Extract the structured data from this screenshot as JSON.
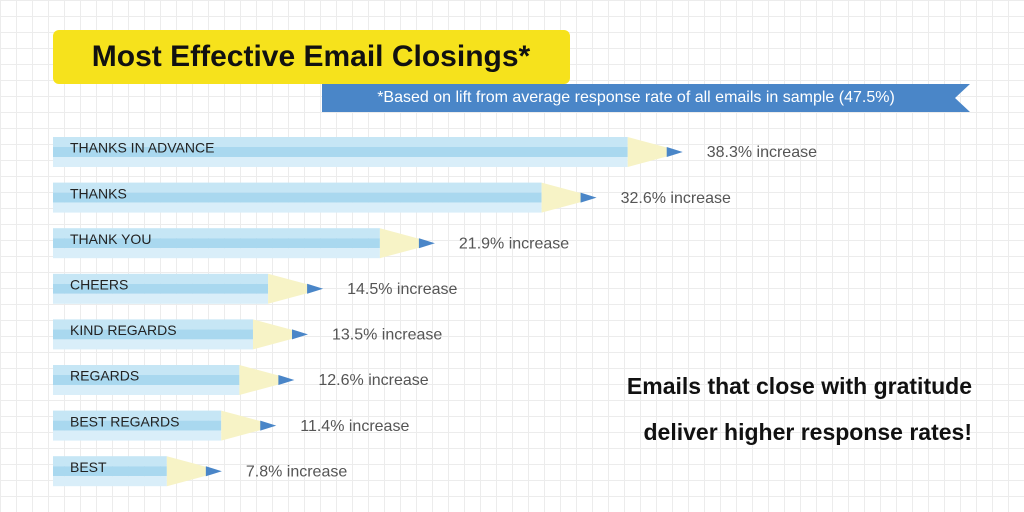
{
  "chart_data": {
    "type": "bar",
    "title": "Most Effective Email Closings*",
    "subtitle": "*Based on lift from average response rate of all emails in sample (47.5%)",
    "categories": [
      "THANKS IN ADVANCE",
      "THANKS",
      "THANK YOU",
      "CHEERS",
      "KIND REGARDS",
      "REGARDS",
      "BEST REGARDS",
      "BEST"
    ],
    "values": [
      38.3,
      32.6,
      21.9,
      14.5,
      13.5,
      12.6,
      11.4,
      7.8
    ],
    "value_labels": [
      "38.3% increase",
      "32.6% increase",
      "21.9% increase",
      "14.5% increase",
      "13.5% increase",
      "12.6% increase",
      "11.4% increase",
      "7.8% increase"
    ],
    "color": "#4a86c8",
    "annotation": [
      "Emails that close with gratitude",
      "deliver higher response rates!"
    ]
  }
}
